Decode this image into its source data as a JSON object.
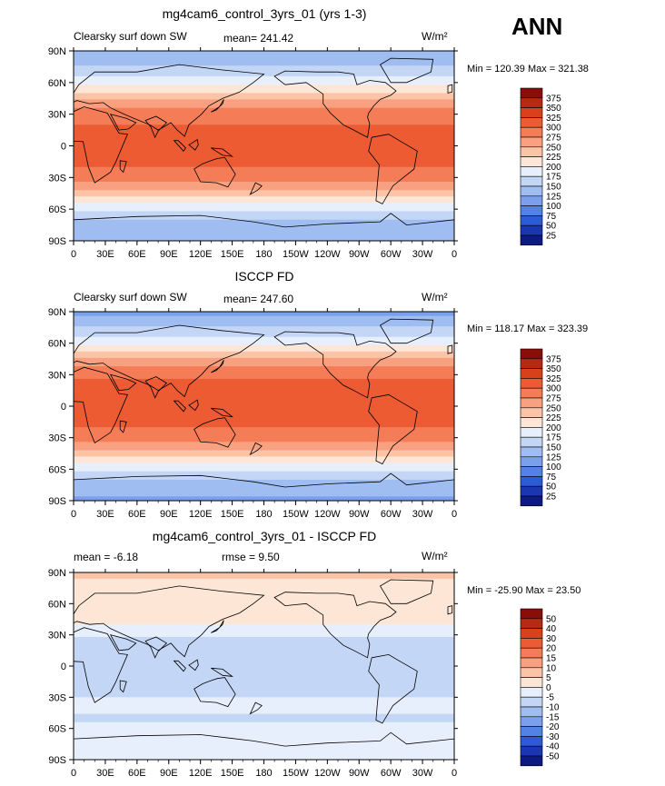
{
  "page": {
    "season": "ANN"
  },
  "chart_data": [
    {
      "type": "heatmap",
      "title": "mg4cam6_control_3yrs_01 (yrs 1-3)",
      "left_label": "Clearsky surf down SW",
      "center_label": "mean=  241.42",
      "units": "W/m²",
      "minmax": "Min = 120.39 Max = 321.38",
      "x_ticks": [
        "0",
        "30E",
        "60E",
        "90E",
        "120E",
        "150E",
        "180",
        "150W",
        "120W",
        "90W",
        "60W",
        "30W",
        "0"
      ],
      "y_ticks": [
        "90N",
        "60N",
        "30N",
        "0",
        "30S",
        "60S",
        "90S"
      ],
      "legend_levels": [
        "375",
        "350",
        "325",
        "300",
        "275",
        "250",
        "225",
        "200",
        "175",
        "150",
        "125",
        "100",
        "75",
        "50",
        "25"
      ],
      "legend_colors": [
        "#8b0d0a",
        "#b52a12",
        "#d9411c",
        "#ec5b33",
        "#f47c56",
        "#f8a07f",
        "#fbc4a7",
        "#fde6d6",
        "#e6effb",
        "#c4d6f6",
        "#9fbdf1",
        "#7aa0ec",
        "#5282e6",
        "#2d5bd8",
        "#1b36b3",
        "#0c1a82"
      ],
      "zonal_profile": {
        "lat": [
          90,
          80,
          70,
          60,
          50,
          40,
          30,
          20,
          10,
          0,
          -10,
          -20,
          -30,
          -40,
          -50,
          -60,
          -70,
          -80,
          -90
        ],
        "value": [
          125,
          140,
          165,
          190,
          225,
          265,
          290,
          300,
          305,
          305,
          305,
          300,
          285,
          255,
          215,
          180,
          150,
          135,
          125
        ]
      }
    },
    {
      "type": "heatmap",
      "title": "ISCCP FD",
      "left_label": "Clearsky surf down SW",
      "center_label": "mean=  247.60",
      "units": "W/m²",
      "minmax": "Min = 118.17 Max = 323.39",
      "x_ticks": [
        "0",
        "30E",
        "60E",
        "90E",
        "120E",
        "150E",
        "180",
        "150W",
        "120W",
        "90W",
        "60W",
        "30W",
        "0"
      ],
      "y_ticks": [
        "90N",
        "60N",
        "30N",
        "0",
        "30S",
        "60S",
        "90S"
      ],
      "legend_levels": [
        "375",
        "350",
        "325",
        "300",
        "275",
        "250",
        "225",
        "200",
        "175",
        "150",
        "125",
        "100",
        "75",
        "50",
        "25"
      ],
      "legend_colors": [
        "#8b0d0a",
        "#b52a12",
        "#d9411c",
        "#ec5b33",
        "#f47c56",
        "#f8a07f",
        "#fbc4a7",
        "#fde6d6",
        "#e6effb",
        "#c4d6f6",
        "#9fbdf1",
        "#7aa0ec",
        "#5282e6",
        "#2d5bd8",
        "#1b36b3",
        "#0c1a82"
      ],
      "zonal_profile": {
        "lat": [
          90,
          80,
          70,
          60,
          50,
          40,
          30,
          20,
          10,
          0,
          -10,
          -20,
          -30,
          -40,
          -50,
          -60,
          -70,
          -80,
          -90
        ],
        "value": [
          120,
          135,
          165,
          195,
          230,
          270,
          295,
          305,
          310,
          310,
          308,
          300,
          285,
          255,
          215,
          180,
          150,
          130,
          120
        ]
      }
    },
    {
      "type": "heatmap",
      "title": "mg4cam6_control_3yrs_01 - ISCCP FD",
      "left_label": "mean =   -6.18",
      "center_label": "rmse =    9.50",
      "units": "W/m²",
      "minmax": "Min = -25.90 Max =  23.50",
      "x_ticks": [
        "0",
        "30E",
        "60E",
        "90E",
        "120E",
        "150E",
        "180",
        "150W",
        "120W",
        "90W",
        "60W",
        "30W",
        "0"
      ],
      "y_ticks": [
        "90N",
        "60N",
        "30N",
        "0",
        "30S",
        "60S",
        "90S"
      ],
      "legend_levels": [
        "50",
        "40",
        "30",
        "20",
        "15",
        "10",
        "5",
        "0",
        "-5",
        "-10",
        "-15",
        "-20",
        "-30",
        "-40",
        "-50"
      ],
      "legend_colors": [
        "#8b0d0a",
        "#b52a12",
        "#d9411c",
        "#ec5b33",
        "#f47c56",
        "#f8a07f",
        "#fbc4a7",
        "#fde6d6",
        "#e6effb",
        "#c4d6f6",
        "#9fbdf1",
        "#7aa0ec",
        "#5282e6",
        "#2d5bd8",
        "#1b36b3",
        "#0c1a82"
      ],
      "zonal_profile": {
        "lat": [
          90,
          80,
          70,
          60,
          50,
          40,
          30,
          20,
          10,
          0,
          -10,
          -20,
          -30,
          -40,
          -50,
          -60,
          -70,
          -80,
          -90
        ],
        "value": [
          6,
          4,
          3,
          3,
          2,
          0,
          -4,
          -8,
          -10,
          -10,
          -9,
          -7,
          -5,
          -4,
          -6,
          -4,
          -5,
          -4,
          -3
        ]
      }
    }
  ]
}
